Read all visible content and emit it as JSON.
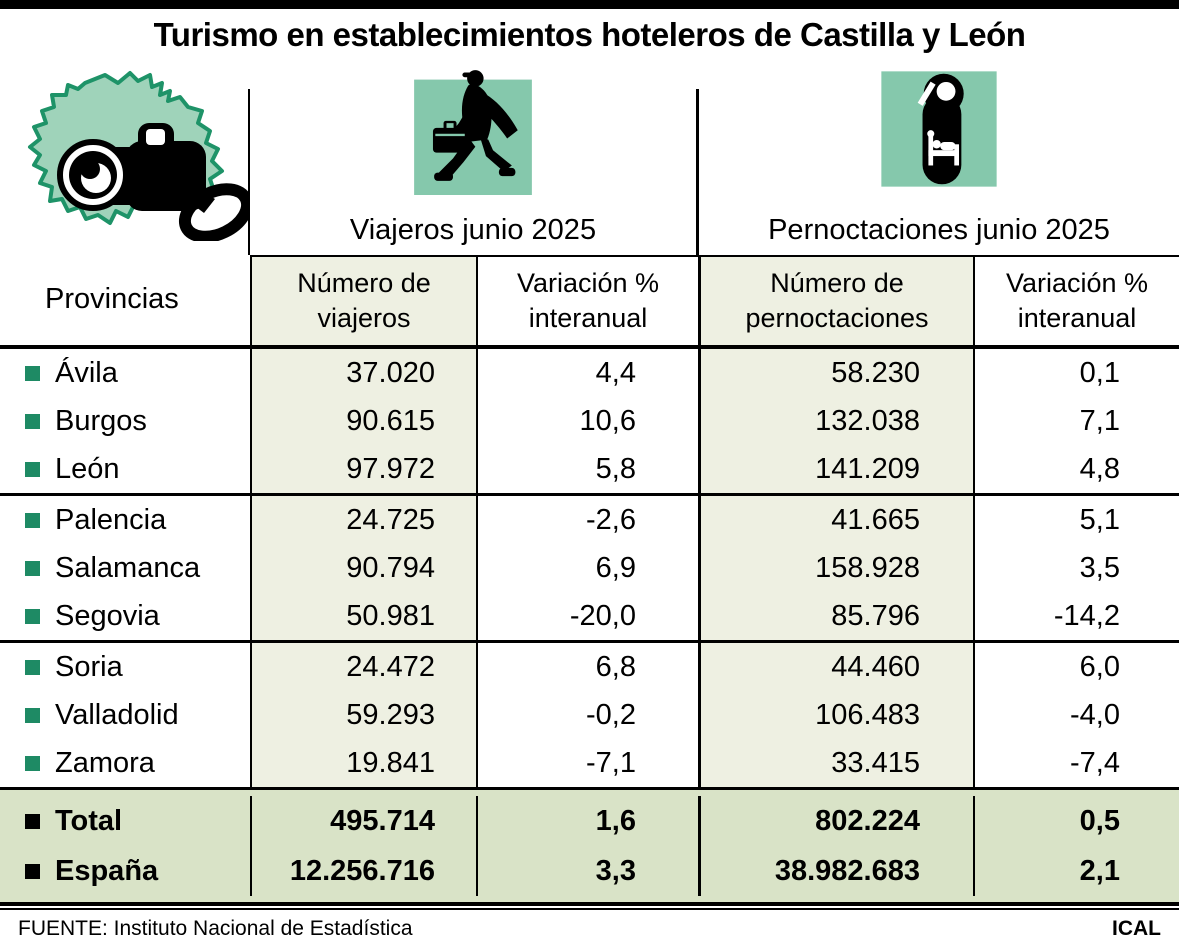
{
  "title": "Turismo en establecimientos hoteleros de Castilla y León",
  "colors": {
    "icon_background_mint": "#85c8ac",
    "map_fill": "#9fd3ba",
    "map_stroke": "#1e9368",
    "province_bullet_green": "#1e8a64",
    "number_column_background": "#eef0e2",
    "totals_band_background": "#d9e3c7",
    "line_black": "#000000"
  },
  "icons": {
    "map": "castilla-leon-map-camera-icon",
    "viajeros": "traveler-suitcase-icon",
    "pernoctaciones": "door-hanger-bed-icon"
  },
  "header": {
    "provinces_label": "Provincias",
    "sections": [
      {
        "label": "Viajeros junio 2025"
      },
      {
        "label": "Pernoctaciones junio 2025"
      }
    ]
  },
  "table": {
    "subheaders": [
      "Número de viajeros",
      "Variación % interanual",
      "Número de pernoctaciones",
      "Variación % interanual"
    ],
    "rows": [
      {
        "province": "Ávila",
        "viajeros": "37.020",
        "var_viajeros": "4,4",
        "pernoctaciones": "58.230",
        "var_pernoctaciones": "0,1"
      },
      {
        "province": "Burgos",
        "viajeros": "90.615",
        "var_viajeros": "10,6",
        "pernoctaciones": "132.038",
        "var_pernoctaciones": "7,1"
      },
      {
        "province": "León",
        "viajeros": "97.972",
        "var_viajeros": "5,8",
        "pernoctaciones": "141.209",
        "var_pernoctaciones": "4,8"
      },
      {
        "province": "Palencia",
        "viajeros": "24.725",
        "var_viajeros": "-2,6",
        "pernoctaciones": "41.665",
        "var_pernoctaciones": "5,1"
      },
      {
        "province": "Salamanca",
        "viajeros": "90.794",
        "var_viajeros": "6,9",
        "pernoctaciones": "158.928",
        "var_pernoctaciones": "3,5"
      },
      {
        "province": "Segovia",
        "viajeros": "50.981",
        "var_viajeros": "-20,0",
        "pernoctaciones": "85.796",
        "var_pernoctaciones": "-14,2"
      },
      {
        "province": "Soria",
        "viajeros": "24.472",
        "var_viajeros": "6,8",
        "pernoctaciones": "44.460",
        "var_pernoctaciones": "6,0"
      },
      {
        "province": "Valladolid",
        "viajeros": "59.293",
        "var_viajeros": "-0,2",
        "pernoctaciones": "106.483",
        "var_pernoctaciones": "-4,0"
      },
      {
        "province": "Zamora",
        "viajeros": "19.841",
        "var_viajeros": "-7,1",
        "pernoctaciones": "33.415",
        "var_pernoctaciones": "-7,4"
      }
    ],
    "totals": [
      {
        "label": "Total",
        "viajeros": "495.714",
        "var_viajeros": "1,6",
        "pernoctaciones": "802.224",
        "var_pernoctaciones": "0,5"
      },
      {
        "label": "España",
        "viajeros": "12.256.716",
        "var_viajeros": "3,3",
        "pernoctaciones": "38.982.683",
        "var_pernoctaciones": "2,1"
      }
    ]
  },
  "chart_data": {
    "type": "table",
    "title": "Turismo en establecimientos hoteleros de Castilla y León",
    "categories": [
      "Ávila",
      "Burgos",
      "León",
      "Palencia",
      "Salamanca",
      "Segovia",
      "Soria",
      "Valladolid",
      "Zamora",
      "Total",
      "España"
    ],
    "series": [
      {
        "name": "Número de viajeros (junio 2025)",
        "values": [
          37020,
          90615,
          97972,
          24725,
          90794,
          50981,
          24472,
          59293,
          19841,
          495714,
          12256716
        ]
      },
      {
        "name": "Variación % interanual viajeros",
        "values": [
          4.4,
          10.6,
          5.8,
          -2.6,
          6.9,
          -20.0,
          6.8,
          -0.2,
          -7.1,
          1.6,
          3.3
        ]
      },
      {
        "name": "Número de pernoctaciones (junio 2025)",
        "values": [
          58230,
          132038,
          141209,
          41665,
          158928,
          85796,
          44460,
          106483,
          33415,
          802224,
          38982683
        ]
      },
      {
        "name": "Variación % interanual pernoctaciones",
        "values": [
          0.1,
          7.1,
          4.8,
          5.1,
          3.5,
          -14.2,
          6.0,
          -4.0,
          -7.4,
          0.5,
          2.1
        ]
      }
    ]
  },
  "footer": {
    "source": "FUENTE: Instituto Nacional de Estadística",
    "credit": "ICAL"
  }
}
